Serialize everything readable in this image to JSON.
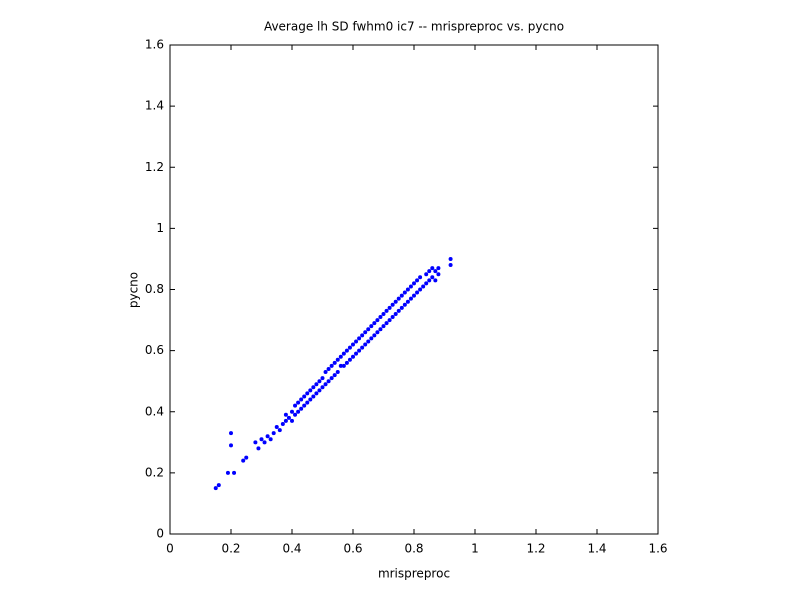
{
  "chart_data": {
    "type": "scatter",
    "title": "Average lh SD fwhm0 ic7 -- mrispreproc vs. pycno",
    "xlabel": "mrispreproc",
    "ylabel": "pycno",
    "color": "#0000ff",
    "xlim": [
      0,
      1.6
    ],
    "ylim": [
      0,
      1.6
    ],
    "xticks": [
      0,
      0.2,
      0.4,
      0.6,
      0.8,
      1,
      1.2,
      1.4,
      1.6
    ],
    "yticks": [
      0,
      0.2,
      0.4,
      0.6,
      0.8,
      1,
      1.2,
      1.4,
      1.6
    ],
    "x": [
      0.15,
      0.16,
      0.2,
      0.2,
      0.21,
      0.19,
      0.24,
      0.25,
      0.92,
      0.92,
      0.28,
      0.29,
      0.3,
      0.31,
      0.32,
      0.33,
      0.34,
      0.35,
      0.36,
      0.37,
      0.38,
      0.38,
      0.39,
      0.4,
      0.4,
      0.41,
      0.41,
      0.42,
      0.42,
      0.43,
      0.43,
      0.44,
      0.44,
      0.45,
      0.45,
      0.46,
      0.46,
      0.47,
      0.47,
      0.48,
      0.48,
      0.49,
      0.49,
      0.5,
      0.5,
      0.51,
      0.51,
      0.52,
      0.52,
      0.53,
      0.53,
      0.54,
      0.54,
      0.55,
      0.55,
      0.56,
      0.56,
      0.57,
      0.57,
      0.58,
      0.58,
      0.59,
      0.59,
      0.6,
      0.6,
      0.61,
      0.61,
      0.62,
      0.62,
      0.63,
      0.63,
      0.64,
      0.64,
      0.65,
      0.65,
      0.66,
      0.66,
      0.67,
      0.67,
      0.68,
      0.68,
      0.69,
      0.69,
      0.7,
      0.7,
      0.71,
      0.71,
      0.72,
      0.72,
      0.73,
      0.73,
      0.74,
      0.74,
      0.75,
      0.75,
      0.76,
      0.76,
      0.77,
      0.77,
      0.78,
      0.78,
      0.79,
      0.79,
      0.8,
      0.8,
      0.81,
      0.81,
      0.82,
      0.82,
      0.83,
      0.84,
      0.84,
      0.85,
      0.85,
      0.86,
      0.86,
      0.87,
      0.87,
      0.88,
      0.88
    ],
    "values": [
      0.15,
      0.16,
      0.33,
      0.29,
      0.2,
      0.2,
      0.24,
      0.25,
      0.9,
      0.88,
      0.3,
      0.28,
      0.31,
      0.3,
      0.32,
      0.31,
      0.33,
      0.35,
      0.34,
      0.36,
      0.37,
      0.39,
      0.38,
      0.4,
      0.37,
      0.39,
      0.42,
      0.4,
      0.43,
      0.41,
      0.44,
      0.42,
      0.45,
      0.43,
      0.46,
      0.44,
      0.47,
      0.45,
      0.48,
      0.46,
      0.49,
      0.47,
      0.5,
      0.48,
      0.51,
      0.49,
      0.53,
      0.5,
      0.54,
      0.51,
      0.55,
      0.52,
      0.56,
      0.53,
      0.57,
      0.55,
      0.58,
      0.55,
      0.59,
      0.56,
      0.6,
      0.57,
      0.61,
      0.58,
      0.62,
      0.59,
      0.63,
      0.6,
      0.64,
      0.61,
      0.65,
      0.62,
      0.66,
      0.63,
      0.67,
      0.64,
      0.68,
      0.65,
      0.69,
      0.66,
      0.7,
      0.67,
      0.71,
      0.68,
      0.72,
      0.69,
      0.73,
      0.7,
      0.74,
      0.71,
      0.75,
      0.72,
      0.76,
      0.73,
      0.77,
      0.74,
      0.78,
      0.75,
      0.79,
      0.76,
      0.8,
      0.77,
      0.81,
      0.78,
      0.82,
      0.79,
      0.83,
      0.8,
      0.84,
      0.81,
      0.82,
      0.85,
      0.83,
      0.86,
      0.84,
      0.87,
      0.83,
      0.86,
      0.85,
      0.87
    ]
  }
}
